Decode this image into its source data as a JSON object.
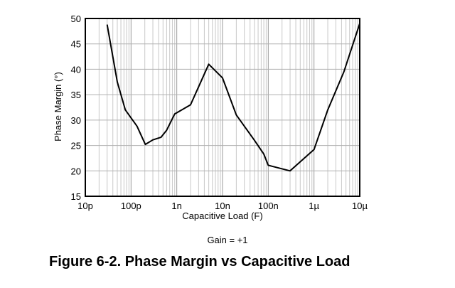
{
  "chart_data": {
    "type": "line",
    "x_scale": "log",
    "xlabel": "Capacitive Load (F)",
    "ylabel": "Phase Margin (°)",
    "xlim": [
      1e-11,
      1e-05
    ],
    "ylim": [
      15,
      50
    ],
    "y_ticks": [
      15,
      20,
      25,
      30,
      35,
      40,
      45,
      50
    ],
    "x_ticks": [
      {
        "value": 1e-11,
        "label": "10p"
      },
      {
        "value": 1e-10,
        "label": "100p"
      },
      {
        "value": 1e-09,
        "label": "1n"
      },
      {
        "value": 1e-08,
        "label": "10n"
      },
      {
        "value": 1e-07,
        "label": "100n"
      },
      {
        "value": 1e-06,
        "label": "1µ"
      },
      {
        "value": 1e-05,
        "label": "10µ"
      }
    ],
    "grid": true,
    "note": "Gain = +1",
    "series": [
      {
        "color": "#000000",
        "x": [
          3e-11,
          5e-11,
          7.5e-11,
          1.35e-10,
          2.05e-10,
          3e-10,
          4.5e-10,
          6e-10,
          9e-10,
          2e-09,
          5e-09,
          1e-08,
          2e-08,
          5e-08,
          8e-08,
          1e-07,
          3e-07,
          1e-06,
          2e-06,
          4.5e-06,
          1e-05
        ],
        "y": [
          48.8,
          37.5,
          32.0,
          28.8,
          25.2,
          26.1,
          26.6,
          28.0,
          31.2,
          33.0,
          41.0,
          38.3,
          31.0,
          26.0,
          23.3,
          21.1,
          20.0,
          24.2,
          32.0,
          39.5,
          49.0
        ]
      }
    ]
  },
  "caption": "Figure 6-2. Phase Margin vs Capacitive Load"
}
